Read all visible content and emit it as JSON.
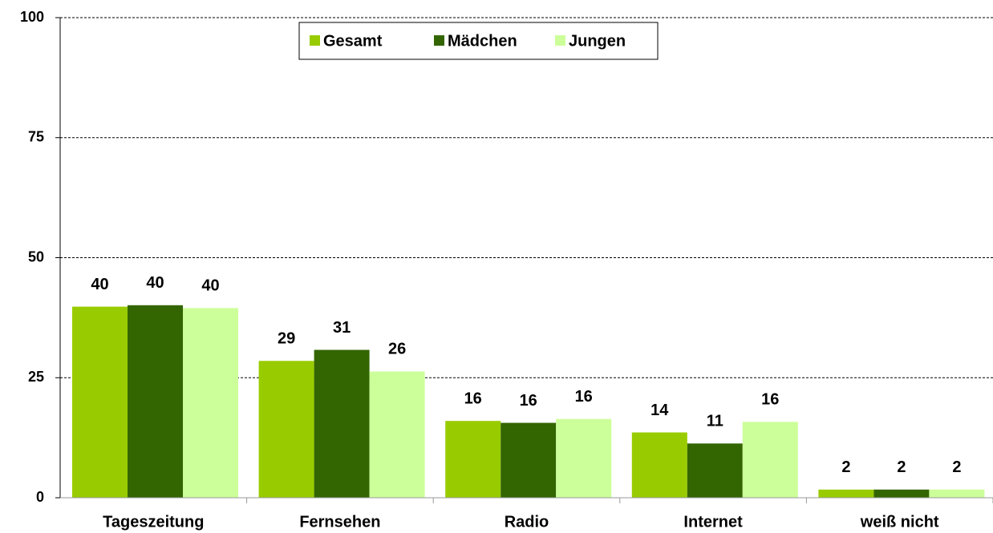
{
  "chart_data": {
    "type": "bar",
    "categories": [
      "Tageszeitung",
      "Fernsehen",
      "Radio",
      "Internet",
      "weiß nicht"
    ],
    "series": [
      {
        "name": "Gesamt",
        "color": "#99cc00",
        "values": [
          39.8,
          28.5,
          16,
          13.6,
          1.7
        ],
        "value_labels": [
          "40",
          "29",
          "16",
          "14",
          "2"
        ]
      },
      {
        "name": "Mädchen",
        "color": "#336600",
        "values": [
          40.1,
          30.8,
          15.6,
          11.3,
          1.7
        ],
        "value_labels": [
          "40",
          "31",
          "16",
          "11",
          "2"
        ]
      },
      {
        "name": "Jungen",
        "color": "#ccff99",
        "values": [
          39.5,
          26.3,
          16.4,
          15.8,
          1.7
        ],
        "value_labels": [
          "40",
          "26",
          "16",
          "16",
          "2"
        ]
      }
    ],
    "ylim": [
      0,
      100
    ],
    "yticks": [
      0,
      25,
      50,
      75,
      100
    ],
    "grid": true,
    "legend": "top"
  }
}
